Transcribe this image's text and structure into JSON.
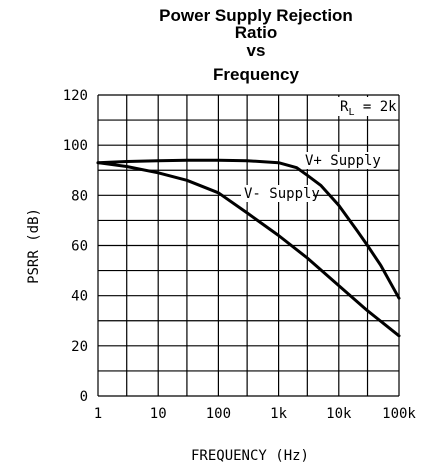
{
  "chart_data": {
    "type": "line",
    "title": [
      "Power Supply Rejection",
      "Ratio",
      "vs",
      "Frequency"
    ],
    "xlabel": "FREQUENCY (Hz)",
    "ylabel": "PSRR (dB)",
    "x_scale": "log",
    "xlim": [
      1,
      100000
    ],
    "ylim": [
      0,
      120
    ],
    "x_ticks": [
      1,
      10,
      100,
      1000,
      10000,
      100000
    ],
    "x_tick_labels": [
      "1",
      "10",
      "100",
      "1k",
      "10k",
      "100k"
    ],
    "y_ticks": [
      0,
      20,
      40,
      60,
      80,
      100,
      120
    ],
    "y_tick_labels": [
      "0",
      "20",
      "40",
      "60",
      "80",
      "100",
      "120"
    ],
    "grid": true,
    "annotation": {
      "main": "R",
      "sub": "L",
      "rest": " = 2k"
    },
    "series": [
      {
        "name": "V+ Supply",
        "x": [
          1,
          3,
          10,
          30,
          100,
          300,
          1000,
          2000,
          3000,
          5000,
          10000,
          20000,
          30000,
          50000,
          100000
        ],
        "y": [
          93,
          93.5,
          93.8,
          94,
          94,
          93.8,
          93,
          91,
          88,
          84,
          76,
          66,
          60,
          52,
          39
        ]
      },
      {
        "name": "V- Supply",
        "x": [
          1,
          3,
          10,
          30,
          100,
          300,
          1000,
          3000,
          10000,
          30000,
          100000
        ],
        "y": [
          93,
          91.5,
          89,
          86,
          81,
          73,
          64,
          55,
          44,
          34,
          24
        ]
      }
    ]
  }
}
